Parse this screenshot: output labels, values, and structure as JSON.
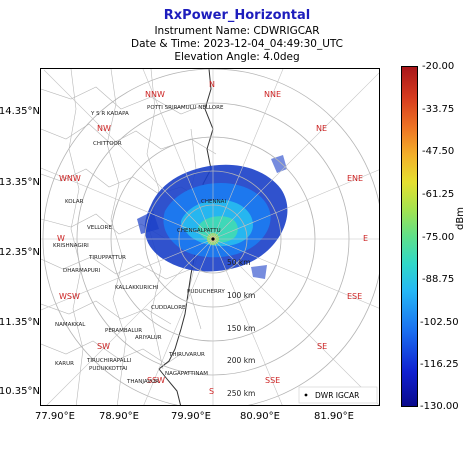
{
  "header": {
    "title": "RxPower_Horizontal",
    "instrument": "Instrument Name: CDWRIGCAR",
    "datetime": "Date & Time: 2023-12-04_04:49:30_UTC",
    "elevation": "Elevation Angle: 4.0deg"
  },
  "axes": {
    "y_ticks": [
      "14.35°N",
      "13.35°N",
      "12.35°N",
      "11.35°N",
      "10.35°N"
    ],
    "x_ticks": [
      "77.90°E",
      "78.90°E",
      "79.90°E",
      "80.90°E",
      "81.90°E"
    ]
  },
  "range_rings": [
    "50 km",
    "100 km",
    "150 km",
    "200 km",
    "250 km"
  ],
  "directions": [
    "N",
    "NNE",
    "NE",
    "ENE",
    "E",
    "ESE",
    "SE",
    "SSE",
    "S",
    "SSW",
    "SW",
    "WSW",
    "W",
    "WNW",
    "NW",
    "NNW"
  ],
  "places": [
    {
      "name": "Y S R KADAPA"
    },
    {
      "name": "POTTI SRIRAMULU NELLORE"
    },
    {
      "name": "CHITTOOR"
    },
    {
      "name": "KOLAR"
    },
    {
      "name": "VELLORE"
    },
    {
      "name": "KRISHNAGIRI"
    },
    {
      "name": "TIRUPPATTUR"
    },
    {
      "name": "DHARMAPURI"
    },
    {
      "name": "CHENNAI"
    },
    {
      "name": "CHENGALPATTU"
    },
    {
      "name": "KALLAKKURICHI"
    },
    {
      "name": "PUDUCHERRY"
    },
    {
      "name": "CUDDALORE"
    },
    {
      "name": "NAMAKKAL"
    },
    {
      "name": "PERAMBALUR"
    },
    {
      "name": "ARIYALUR"
    },
    {
      "name": "KARUR"
    },
    {
      "name": "TIRUCHIRAPALLI"
    },
    {
      "name": "PUDUKKOTTAI"
    },
    {
      "name": "THANJAVUR"
    },
    {
      "name": "NAGAPATTINAM"
    },
    {
      "name": "THIRUVARUR"
    }
  ],
  "legend": {
    "label": "DWR IGCAR"
  },
  "colorbar": {
    "unit": "dBm",
    "ticks": [
      "-20.00",
      "-33.75",
      "-47.50",
      "-61.25",
      "-75.00",
      "-88.75",
      "-102.50",
      "-116.25",
      "-130.00"
    ],
    "colors": {
      "min": "#0a0a8c",
      "mid": "#a4e34f",
      "max": "#a8161a"
    }
  },
  "radar_site": "DWR IGCAR",
  "colors": {
    "title": "#1d1dbd",
    "direction_labels": "#cc2222"
  }
}
